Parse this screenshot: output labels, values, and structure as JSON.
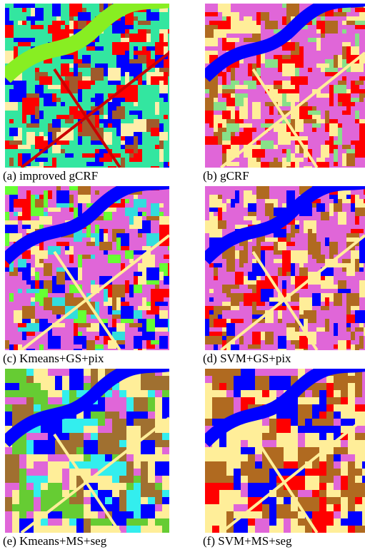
{
  "figure": {
    "panels": [
      {
        "caption": "(a) improved gCRF"
      },
      {
        "caption": "(b) gCRF"
      },
      {
        "caption": "(c) Kmeans+GS+pix"
      },
      {
        "caption": "(d) SVM+GS+pix"
      },
      {
        "caption": "(e) Kmeans+MS+seg"
      },
      {
        "caption": "(f) SVM+MS+seg"
      }
    ]
  }
}
